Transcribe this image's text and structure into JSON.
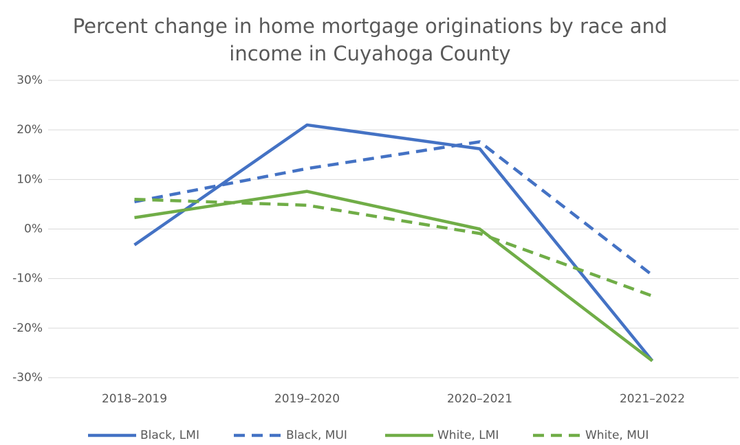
{
  "chart_data": {
    "type": "line",
    "title": "Percent change in home mortgage originations by race and income in Cuyahoga County",
    "categories": [
      "2018–2019",
      "2019–2020",
      "2020–2021",
      "2021–2022"
    ],
    "series": [
      {
        "name": "Black, LMI",
        "color": "#4472c4",
        "line_style": "solid",
        "values": [
          -3.2,
          21,
          16.2,
          -26.6
        ]
      },
      {
        "name": "Black, MUI",
        "color": "#4472c4",
        "line_style": "dashed",
        "values": [
          5.5,
          12.2,
          17.6,
          -9.3
        ]
      },
      {
        "name": "White, LMI",
        "color": "#70ad47",
        "line_style": "solid",
        "values": [
          2.3,
          7.6,
          0,
          -26.6
        ]
      },
      {
        "name": "White, MUI",
        "color": "#70ad47",
        "line_style": "dashed",
        "values": [
          6,
          4.8,
          -0.9,
          -13.5
        ]
      }
    ],
    "ylim": [
      -30,
      30
    ],
    "yticks": [
      {
        "value": -30,
        "label": "-30%"
      },
      {
        "value": -20,
        "label": "-20%"
      },
      {
        "value": -10,
        "label": "-10%"
      },
      {
        "value": 0,
        "label": "0%"
      },
      {
        "value": 10,
        "label": "10%"
      },
      {
        "value": 20,
        "label": "20%"
      },
      {
        "value": 30,
        "label": "30%"
      }
    ],
    "grid": true,
    "legend": "bottom"
  }
}
